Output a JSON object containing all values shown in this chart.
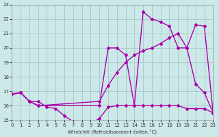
{
  "xlabel": "Windchill (Refroidissement éolien,°C)",
  "xlim": [
    0,
    23
  ],
  "ylim": [
    15,
    23
  ],
  "yticks": [
    15,
    16,
    17,
    18,
    19,
    20,
    21,
    22,
    23
  ],
  "xticks": [
    0,
    1,
    2,
    3,
    4,
    5,
    6,
    7,
    8,
    9,
    10,
    11,
    12,
    13,
    14,
    15,
    16,
    17,
    18,
    19,
    20,
    21,
    22,
    23
  ],
  "bg_color": "#cce8e8",
  "grid_color": "#aacccc",
  "line_color": "#aa00aa",
  "series1_x": [
    0,
    1,
    2,
    3,
    4,
    5,
    6,
    7,
    8,
    9,
    10,
    11,
    12,
    13,
    14,
    15,
    16,
    17,
    18,
    19,
    20,
    21,
    22,
    23
  ],
  "series1_y": [
    16.8,
    16.9,
    16.3,
    16.3,
    15.9,
    15.8,
    15.3,
    14.9,
    14.8,
    14.8,
    15.1,
    15.9,
    16.0,
    16.0,
    16.0,
    16.0,
    16.0,
    16.0,
    16.0,
    16.0,
    15.8,
    15.8,
    15.8,
    15.5
  ],
  "series2_x": [
    0,
    1,
    2,
    3,
    10,
    11,
    12,
    13,
    14,
    15,
    16,
    17,
    18,
    19,
    20,
    21,
    22,
    23
  ],
  "series2_y": [
    16.8,
    16.9,
    16.3,
    16.0,
    16.0,
    20.0,
    20.0,
    19.5,
    16.0,
    22.5,
    22.0,
    21.8,
    21.5,
    20.0,
    20.0,
    17.5,
    16.9,
    15.5
  ],
  "series3_x": [
    0,
    1,
    2,
    3,
    10,
    11,
    12,
    13,
    14,
    15,
    16,
    17,
    18,
    19,
    20,
    21,
    22,
    23
  ],
  "series3_y": [
    16.8,
    16.9,
    16.3,
    16.0,
    16.3,
    17.4,
    18.3,
    19.0,
    19.5,
    19.8,
    20.0,
    20.3,
    20.7,
    21.0,
    20.0,
    21.6,
    21.5,
    15.5
  ]
}
